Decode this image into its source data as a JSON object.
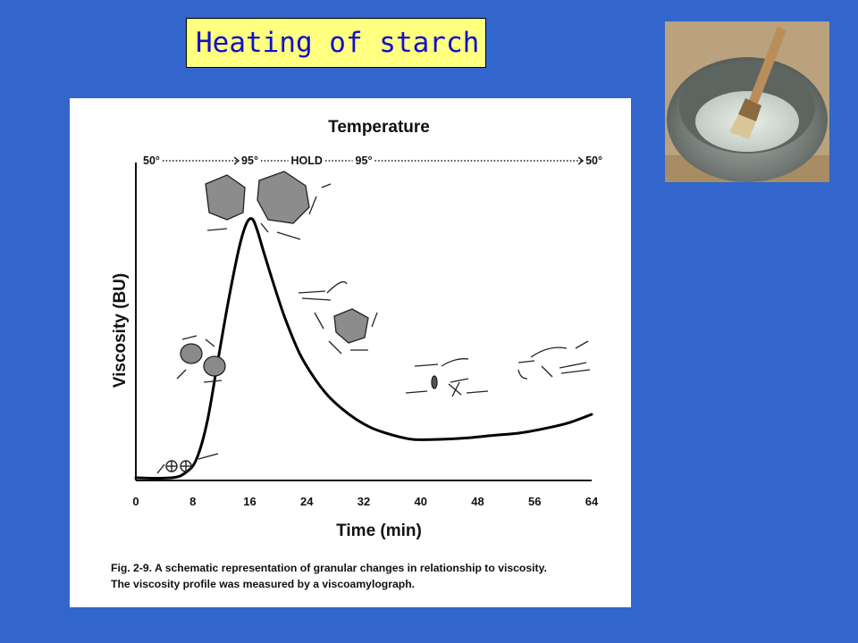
{
  "slide": {
    "title": "Heating of starch",
    "photo_icon": "bowl-with-pastry-brush-photo"
  },
  "figure": {
    "caption_line1": "Fig. 2-9. A schematic representation of granular changes in relationship to viscosity.",
    "caption_line2": "The viscosity profile was measured by a viscoamylograph."
  },
  "chart_data": {
    "type": "line",
    "title": "Temperature",
    "temperature_labels": [
      {
        "text": "50°",
        "at": 0
      },
      {
        "text": "95°",
        "at": 16
      },
      {
        "text": "HOLD",
        "at": 24
      },
      {
        "text": "95°",
        "at": 32
      },
      {
        "text": "50°",
        "at": 64
      }
    ],
    "xlabel": "Time (min)",
    "ylabel": "Viscosity (BU)",
    "xlim": [
      0,
      64
    ],
    "ylim": [
      0,
      1
    ],
    "xticks": [
      0,
      8,
      16,
      24,
      32,
      40,
      48,
      56,
      64
    ],
    "grid": false,
    "series": [
      {
        "color": "#000000",
        "x": [
          0,
          5,
          7,
          8.5,
          10,
          11.5,
          13,
          14.5,
          15.5,
          16.3,
          17,
          18,
          19.5,
          21,
          23,
          25,
          27,
          29,
          31,
          33,
          35,
          37,
          39,
          42,
          46,
          50,
          54,
          58,
          61,
          64
        ],
        "y": [
          0.01,
          0.01,
          0.03,
          0.08,
          0.22,
          0.45,
          0.68,
          0.88,
          0.97,
          0.99,
          0.95,
          0.86,
          0.73,
          0.61,
          0.48,
          0.39,
          0.32,
          0.27,
          0.23,
          0.2,
          0.18,
          0.165,
          0.155,
          0.155,
          0.16,
          0.17,
          0.18,
          0.2,
          0.22,
          0.25
        ]
      }
    ]
  }
}
